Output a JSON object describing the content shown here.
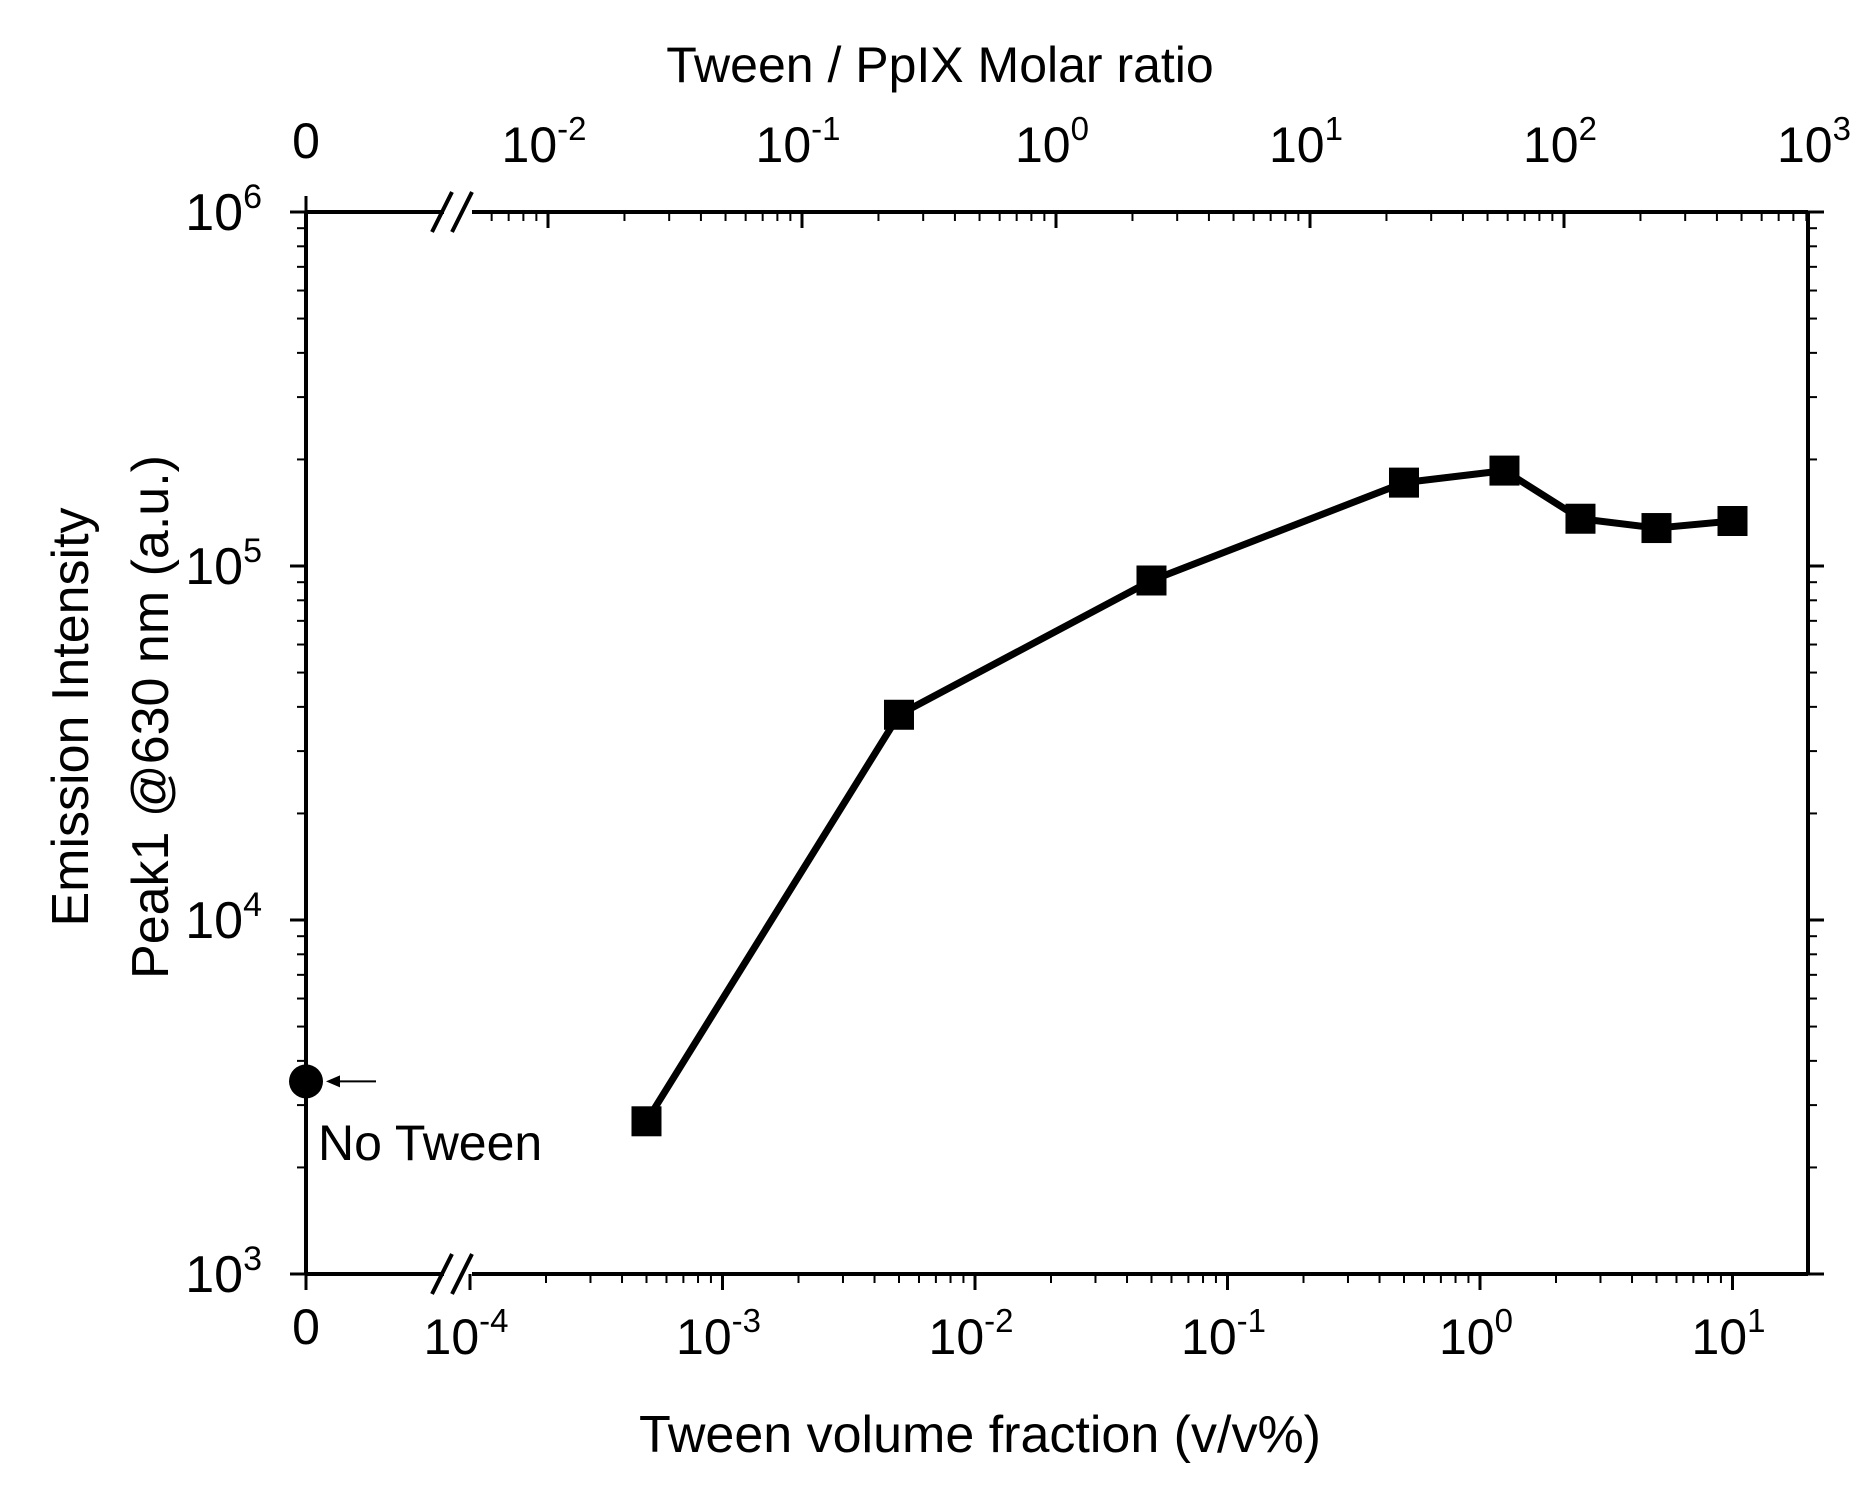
{
  "chart_data": {
    "type": "line",
    "y_label_line1": "Emission Intensity",
    "y_label_line2": "Peak1 @630 nm (a.u.)",
    "x_bottom_label": "Tween volume fraction (v/v%)",
    "x_top_label": "Tween / PpIX Molar ratio",
    "y_scale": "log",
    "ylim": [
      1000,
      1000000
    ],
    "y_ticks": [
      {
        "value": 1000,
        "base": "10",
        "exp": "3"
      },
      {
        "value": 10000,
        "base": "10",
        "exp": "4"
      },
      {
        "value": 100000,
        "base": "10",
        "exp": "5"
      },
      {
        "value": 1000000,
        "base": "10",
        "exp": "6"
      }
    ],
    "x_bottom_scale": "log with axis break",
    "x_bottom_zero_label": "0",
    "x_bottom_ticks": [
      {
        "value": 0.0001,
        "base": "10",
        "exp": "-4"
      },
      {
        "value": 0.001,
        "base": "10",
        "exp": "-3"
      },
      {
        "value": 0.01,
        "base": "10",
        "exp": "-2"
      },
      {
        "value": 0.1,
        "base": "10",
        "exp": "-1"
      },
      {
        "value": 1,
        "base": "10",
        "exp": "0"
      },
      {
        "value": 10,
        "base": "10",
        "exp": "1"
      }
    ],
    "x_top_zero_label": "0",
    "x_top_ticks": [
      {
        "value": 0.01,
        "base": "10",
        "exp": "-2"
      },
      {
        "value": 0.1,
        "base": "10",
        "exp": "-1"
      },
      {
        "value": 1,
        "base": "10",
        "exp": "0"
      },
      {
        "value": 10,
        "base": "10",
        "exp": "1"
      },
      {
        "value": 100,
        "base": "10",
        "exp": "2"
      },
      {
        "value": 1000,
        "base": "10",
        "exp": "3"
      }
    ],
    "series": [
      {
        "name": "Tween",
        "marker": "square",
        "x": [
          0.0005,
          0.005,
          0.05,
          0.5,
          1.25,
          2.5,
          5,
          10
        ],
        "y": [
          2700,
          38000,
          91000,
          172000,
          186000,
          136000,
          128000,
          134000
        ]
      }
    ],
    "reference_point": {
      "x": 0,
      "y": 3500,
      "marker": "circle"
    },
    "annotation": "No Tween"
  }
}
